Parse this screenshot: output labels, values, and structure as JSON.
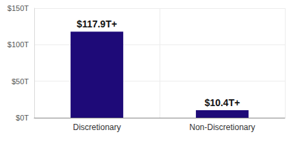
{
  "chart_data": {
    "type": "bar",
    "categories": [
      "Discretionary",
      "Non-Discretionary"
    ],
    "values": [
      117.9,
      10.4
    ],
    "value_labels": [
      "$117.9T+",
      "$10.4T+"
    ],
    "data_labels": true,
    "color": "#1e0a78",
    "ylim": [
      0,
      150
    ],
    "yticks": [
      {
        "value": 0,
        "label": "$0T"
      },
      {
        "value": 50,
        "label": "$50T"
      },
      {
        "value": 100,
        "label": "$100T"
      },
      {
        "value": 150,
        "label": "$150T"
      }
    ],
    "grid": true
  }
}
